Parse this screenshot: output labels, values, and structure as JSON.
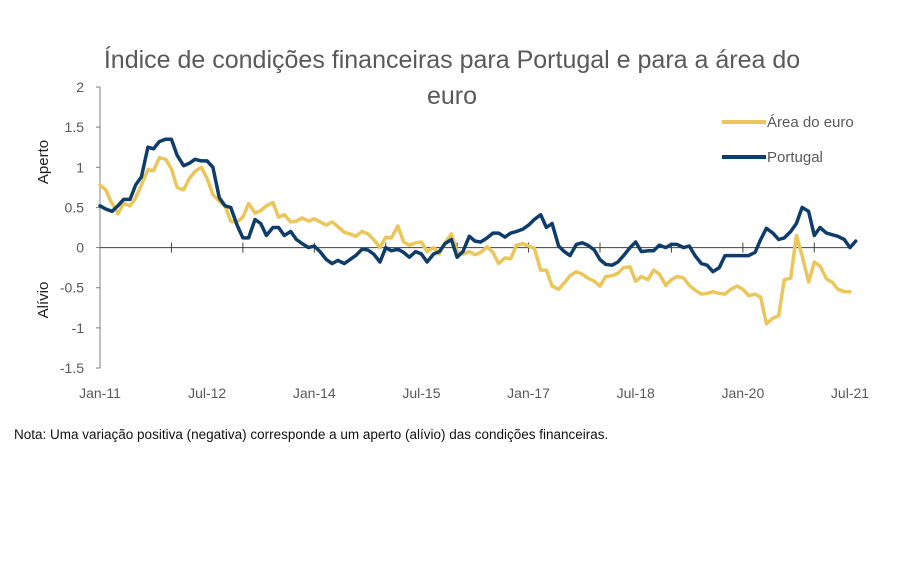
{
  "chart_data": {
    "type": "line",
    "title_lines": [
      "Índice de condições financeiras para Portugal e para a área do",
      "euro"
    ],
    "ylim": [
      -1.5,
      2
    ],
    "yticks": [
      -1.5,
      -1,
      -0.5,
      0,
      0.5,
      1,
      1.5,
      2
    ],
    "ytick_labels": [
      "-1.5",
      "-1",
      "-0.5",
      "0",
      "0.5",
      "1",
      "1.5",
      "2"
    ],
    "xlim": [
      2011.0,
      2021.5
    ],
    "xticks": [
      2011.0,
      2012.5,
      2014.0,
      2015.5,
      2017.0,
      2018.5,
      2020.0,
      2021.5
    ],
    "xtick_labels": [
      "Jan-11",
      "Jul-12",
      "Jan-14",
      "Jul-15",
      "Jan-17",
      "Jul-18",
      "Jan-20",
      "Jul-21"
    ],
    "side_labels": {
      "upper": "Aperto",
      "lower": "Alívio"
    },
    "series": [
      {
        "name": "Área do euro",
        "color": "#EBC65A",
        "points": [
          [
            2011.0,
            0.78
          ],
          [
            2011.08,
            0.72
          ],
          [
            2011.15,
            0.58
          ],
          [
            2011.25,
            0.42
          ],
          [
            2011.33,
            0.55
          ],
          [
            2011.42,
            0.52
          ],
          [
            2011.5,
            0.62
          ],
          [
            2011.58,
            0.78
          ],
          [
            2011.67,
            0.97
          ],
          [
            2011.75,
            0.96
          ],
          [
            2011.83,
            1.12
          ],
          [
            2011.92,
            1.1
          ],
          [
            2012.0,
            0.98
          ],
          [
            2012.08,
            0.75
          ],
          [
            2012.17,
            0.72
          ],
          [
            2012.25,
            0.86
          ],
          [
            2012.33,
            0.95
          ],
          [
            2012.42,
            1.0
          ],
          [
            2012.5,
            0.86
          ],
          [
            2012.58,
            0.66
          ],
          [
            2012.67,
            0.58
          ],
          [
            2012.75,
            0.52
          ],
          [
            2012.83,
            0.33
          ],
          [
            2012.92,
            0.32
          ],
          [
            2013.0,
            0.38
          ],
          [
            2013.08,
            0.55
          ],
          [
            2013.17,
            0.43
          ],
          [
            2013.25,
            0.46
          ],
          [
            2013.33,
            0.52
          ],
          [
            2013.42,
            0.56
          ],
          [
            2013.5,
            0.38
          ],
          [
            2013.58,
            0.41
          ],
          [
            2013.67,
            0.32
          ],
          [
            2013.75,
            0.33
          ],
          [
            2013.83,
            0.37
          ],
          [
            2013.92,
            0.33
          ],
          [
            2014.0,
            0.36
          ],
          [
            2014.08,
            0.32
          ],
          [
            2014.17,
            0.28
          ],
          [
            2014.25,
            0.32
          ],
          [
            2014.33,
            0.26
          ],
          [
            2014.42,
            0.19
          ],
          [
            2014.5,
            0.17
          ],
          [
            2014.58,
            0.14
          ],
          [
            2014.67,
            0.2
          ],
          [
            2014.75,
            0.17
          ],
          [
            2014.83,
            0.1
          ],
          [
            2014.92,
            0.0
          ],
          [
            2015.0,
            0.13
          ],
          [
            2015.08,
            0.12
          ],
          [
            2015.17,
            0.27
          ],
          [
            2015.25,
            0.07
          ],
          [
            2015.33,
            0.03
          ],
          [
            2015.42,
            0.06
          ],
          [
            2015.5,
            0.07
          ],
          [
            2015.58,
            -0.05
          ],
          [
            2015.67,
            0.0
          ],
          [
            2015.75,
            -0.08
          ],
          [
            2015.83,
            0.06
          ],
          [
            2015.92,
            0.17
          ],
          [
            2016.0,
            -0.05
          ],
          [
            2016.08,
            -0.08
          ],
          [
            2016.17,
            -0.05
          ],
          [
            2016.25,
            -0.09
          ],
          [
            2016.33,
            -0.06
          ],
          [
            2016.42,
            0.01
          ],
          [
            2016.5,
            -0.06
          ],
          [
            2016.58,
            -0.2
          ],
          [
            2016.67,
            -0.13
          ],
          [
            2016.75,
            -0.14
          ],
          [
            2016.83,
            0.03
          ],
          [
            2016.92,
            0.05
          ],
          [
            2017.0,
            0.02
          ],
          [
            2017.08,
            -0.01
          ],
          [
            2017.17,
            -0.28
          ],
          [
            2017.25,
            -0.28
          ],
          [
            2017.33,
            -0.48
          ],
          [
            2017.42,
            -0.52
          ],
          [
            2017.5,
            -0.44
          ],
          [
            2017.58,
            -0.35
          ],
          [
            2017.67,
            -0.3
          ],
          [
            2017.75,
            -0.33
          ],
          [
            2017.83,
            -0.38
          ],
          [
            2017.92,
            -0.42
          ],
          [
            2018.0,
            -0.48
          ],
          [
            2018.08,
            -0.36
          ],
          [
            2018.17,
            -0.35
          ],
          [
            2018.25,
            -0.32
          ],
          [
            2018.33,
            -0.25
          ],
          [
            2018.42,
            -0.24
          ],
          [
            2018.5,
            -0.42
          ],
          [
            2018.58,
            -0.36
          ],
          [
            2018.67,
            -0.4
          ],
          [
            2018.75,
            -0.28
          ],
          [
            2018.83,
            -0.33
          ],
          [
            2018.92,
            -0.47
          ],
          [
            2019.0,
            -0.4
          ],
          [
            2019.08,
            -0.36
          ],
          [
            2019.17,
            -0.38
          ],
          [
            2019.25,
            -0.47
          ],
          [
            2019.33,
            -0.53
          ],
          [
            2019.42,
            -0.58
          ],
          [
            2019.5,
            -0.57
          ],
          [
            2019.58,
            -0.55
          ],
          [
            2019.67,
            -0.57
          ],
          [
            2019.75,
            -0.58
          ],
          [
            2019.83,
            -0.52
          ],
          [
            2019.92,
            -0.48
          ],
          [
            2020.0,
            -0.52
          ],
          [
            2020.08,
            -0.6
          ],
          [
            2020.17,
            -0.58
          ],
          [
            2020.25,
            -0.62
          ],
          [
            2020.33,
            -0.95
          ],
          [
            2020.42,
            -0.88
          ],
          [
            2020.5,
            -0.85
          ],
          [
            2020.58,
            -0.4
          ],
          [
            2020.67,
            -0.38
          ],
          [
            2020.75,
            0.15
          ],
          [
            2020.83,
            -0.1
          ],
          [
            2020.92,
            -0.43
          ],
          [
            2021.0,
            -0.18
          ],
          [
            2021.08,
            -0.23
          ],
          [
            2021.17,
            -0.39
          ],
          [
            2021.25,
            -0.43
          ],
          [
            2021.33,
            -0.52
          ],
          [
            2021.42,
            -0.55
          ],
          [
            2021.5,
            -0.55
          ]
        ]
      },
      {
        "name": "Portugal",
        "color": "#0E3D6B",
        "points": [
          [
            2011.0,
            0.52
          ],
          [
            2011.08,
            0.48
          ],
          [
            2011.17,
            0.45
          ],
          [
            2011.25,
            0.52
          ],
          [
            2011.33,
            0.6
          ],
          [
            2011.42,
            0.6
          ],
          [
            2011.5,
            0.78
          ],
          [
            2011.58,
            0.88
          ],
          [
            2011.67,
            1.25
          ],
          [
            2011.75,
            1.23
          ],
          [
            2011.83,
            1.32
          ],
          [
            2011.92,
            1.35
          ],
          [
            2012.0,
            1.35
          ],
          [
            2012.08,
            1.15
          ],
          [
            2012.17,
            1.02
          ],
          [
            2012.25,
            1.05
          ],
          [
            2012.33,
            1.1
          ],
          [
            2012.42,
            1.08
          ],
          [
            2012.5,
            1.08
          ],
          [
            2012.58,
            1.0
          ],
          [
            2012.67,
            0.62
          ],
          [
            2012.75,
            0.52
          ],
          [
            2012.83,
            0.5
          ],
          [
            2012.92,
            0.28
          ],
          [
            2013.0,
            0.12
          ],
          [
            2013.08,
            0.12
          ],
          [
            2013.17,
            0.35
          ],
          [
            2013.25,
            0.3
          ],
          [
            2013.33,
            0.15
          ],
          [
            2013.42,
            0.25
          ],
          [
            2013.5,
            0.25
          ],
          [
            2013.58,
            0.15
          ],
          [
            2013.67,
            0.2
          ],
          [
            2013.75,
            0.1
          ],
          [
            2013.83,
            0.05
          ],
          [
            2013.92,
            0.0
          ],
          [
            2014.0,
            0.02
          ],
          [
            2014.08,
            -0.05
          ],
          [
            2014.17,
            -0.15
          ],
          [
            2014.25,
            -0.2
          ],
          [
            2014.33,
            -0.16
          ],
          [
            2014.42,
            -0.2
          ],
          [
            2014.5,
            -0.15
          ],
          [
            2014.58,
            -0.1
          ],
          [
            2014.67,
            -0.02
          ],
          [
            2014.75,
            -0.03
          ],
          [
            2014.83,
            -0.08
          ],
          [
            2014.92,
            -0.18
          ],
          [
            2015.0,
            0.0
          ],
          [
            2015.08,
            -0.04
          ],
          [
            2015.17,
            -0.02
          ],
          [
            2015.25,
            -0.06
          ],
          [
            2015.33,
            -0.12
          ],
          [
            2015.42,
            -0.05
          ],
          [
            2015.5,
            -0.08
          ],
          [
            2015.58,
            -0.18
          ],
          [
            2015.67,
            -0.08
          ],
          [
            2015.75,
            -0.05
          ],
          [
            2015.83,
            0.05
          ],
          [
            2015.92,
            0.1
          ],
          [
            2016.0,
            -0.12
          ],
          [
            2016.08,
            -0.05
          ],
          [
            2016.17,
            0.14
          ],
          [
            2016.25,
            0.08
          ],
          [
            2016.33,
            0.07
          ],
          [
            2016.42,
            0.12
          ],
          [
            2016.5,
            0.18
          ],
          [
            2016.58,
            0.18
          ],
          [
            2016.67,
            0.13
          ],
          [
            2016.75,
            0.18
          ],
          [
            2016.83,
            0.2
          ],
          [
            2016.92,
            0.23
          ],
          [
            2017.0,
            0.28
          ],
          [
            2017.08,
            0.35
          ],
          [
            2017.17,
            0.41
          ],
          [
            2017.25,
            0.25
          ],
          [
            2017.33,
            0.3
          ],
          [
            2017.42,
            0.02
          ],
          [
            2017.5,
            -0.05
          ],
          [
            2017.58,
            -0.1
          ],
          [
            2017.67,
            0.04
          ],
          [
            2017.75,
            0.06
          ],
          [
            2017.83,
            0.03
          ],
          [
            2017.92,
            -0.03
          ],
          [
            2018.0,
            -0.15
          ],
          [
            2018.08,
            -0.21
          ],
          [
            2018.17,
            -0.22
          ],
          [
            2018.25,
            -0.18
          ],
          [
            2018.33,
            -0.1
          ],
          [
            2018.42,
            0.0
          ],
          [
            2018.5,
            0.07
          ],
          [
            2018.58,
            -0.05
          ],
          [
            2018.67,
            -0.04
          ],
          [
            2018.75,
            -0.04
          ],
          [
            2018.83,
            0.03
          ],
          [
            2018.92,
            0.0
          ],
          [
            2019.0,
            0.04
          ],
          [
            2019.08,
            0.04
          ],
          [
            2019.17,
            0.0
          ],
          [
            2019.25,
            0.02
          ],
          [
            2019.33,
            -0.1
          ],
          [
            2019.42,
            -0.2
          ],
          [
            2019.5,
            -0.22
          ],
          [
            2019.58,
            -0.3
          ],
          [
            2019.67,
            -0.25
          ],
          [
            2019.75,
            -0.1
          ],
          [
            2019.83,
            -0.1
          ],
          [
            2019.92,
            -0.1
          ],
          [
            2020.0,
            -0.1
          ],
          [
            2020.08,
            -0.1
          ],
          [
            2020.17,
            -0.06
          ],
          [
            2020.25,
            0.1
          ],
          [
            2020.33,
            0.24
          ],
          [
            2020.42,
            0.18
          ],
          [
            2020.5,
            0.1
          ],
          [
            2020.58,
            0.12
          ],
          [
            2020.67,
            0.2
          ],
          [
            2020.75,
            0.3
          ],
          [
            2020.83,
            0.5
          ],
          [
            2020.92,
            0.45
          ],
          [
            2021.0,
            0.15
          ],
          [
            2021.08,
            0.25
          ],
          [
            2021.17,
            0.18
          ],
          [
            2021.25,
            0.16
          ],
          [
            2021.33,
            0.14
          ],
          [
            2021.42,
            0.1
          ],
          [
            2021.5,
            0.0
          ],
          [
            2021.58,
            0.08
          ]
        ]
      }
    ]
  },
  "note": "Nota: Uma variação positiva (negativa) corresponde a um aperto (alívio) das condições financeiras."
}
